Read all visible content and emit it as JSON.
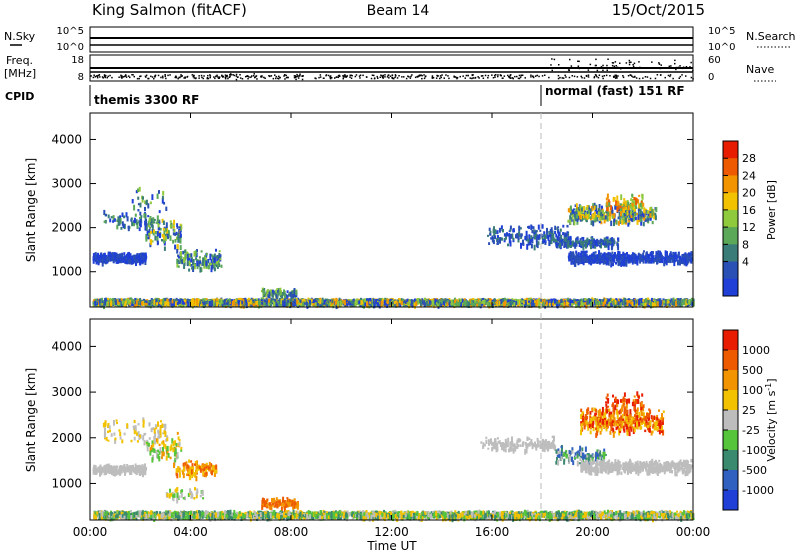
{
  "header": {
    "station": "King Salmon (fitACF)",
    "beam": "Beam 14",
    "date": "15/Oct/2015"
  },
  "strips": {
    "nsky_label": "N.Sky",
    "nsky_ticks": [
      "10^5",
      "10^0"
    ],
    "nsearch_label": "N.Search",
    "nsearch_ticks": [
      "10^5",
      "10^0"
    ],
    "freq_label": "Freq.",
    "freq_unit": "[MHz]",
    "freq_ticks": [
      "18",
      "8"
    ],
    "nave_label": "Nave",
    "nave_ticks": [
      "60",
      "0"
    ],
    "cpid_label": "CPID",
    "cpid_segments": [
      {
        "label": "themis 3300 RF",
        "start_hour": 0
      },
      {
        "label": "normal (fast) 151 RF",
        "start_hour": 18
      }
    ]
  },
  "x_axis": {
    "label": "Time UT",
    "ticks": [
      "00:00",
      "04:00",
      "08:00",
      "12:00",
      "16:00",
      "20:00",
      "00:00"
    ],
    "range_hours": [
      0,
      24
    ],
    "mode_change_hour": 18
  },
  "chart_data": [
    {
      "type": "heatmap",
      "panel": "power",
      "ylabel": "Slant Range [km]",
      "ylim": [
        200,
        4600
      ],
      "yticks": [
        "4000",
        "3000",
        "2000",
        "1000"
      ],
      "colorbar_label": "Power [dB]",
      "colorbar_ticks": [
        "28",
        "24",
        "20",
        "16",
        "12",
        "8",
        "4"
      ],
      "colors": [
        "#1f3fd6",
        "#2a4fb5",
        "#3a7d78",
        "#5aa858",
        "#8fc93c",
        "#f2c200",
        "#f29400",
        "#ee5a00",
        "#e81c00"
      ]
    },
    {
      "type": "heatmap",
      "panel": "velocity",
      "ylabel": "Slant Range [km]",
      "ylim": [
        200,
        4600
      ],
      "yticks": [
        "4000",
        "3000",
        "2000",
        "1000"
      ],
      "colorbar_label": "Velocity [m s^-1]",
      "colorbar_ticks": [
        "1000",
        "500",
        "100",
        "25",
        "-25",
        "-100",
        "-500",
        "-1000"
      ],
      "colors": [
        "#1f3fd6",
        "#3060c0",
        "#3a8a70",
        "#56c43a",
        "#bdbdbd",
        "#f2c200",
        "#f29400",
        "#ee5a00",
        "#e81c00"
      ]
    }
  ]
}
